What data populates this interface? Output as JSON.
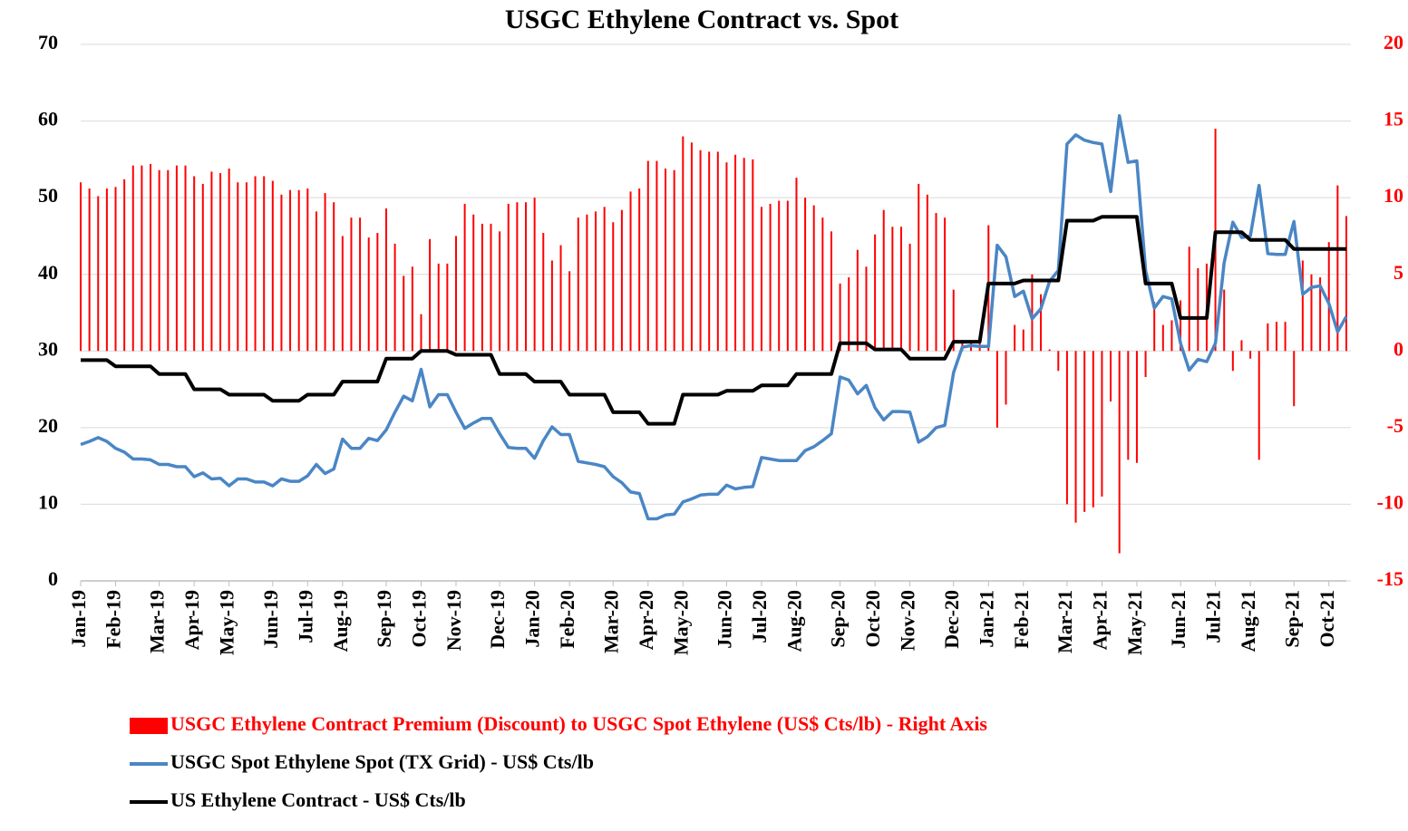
{
  "chart_data": {
    "type": "bar-line",
    "title": "USGC Ethylene Contract vs. Spot",
    "categories": [
      "Jan-19",
      null,
      null,
      null,
      "Feb-19",
      null,
      null,
      null,
      null,
      "Mar-19",
      null,
      null,
      null,
      "Apr-19",
      null,
      null,
      null,
      "May-19",
      null,
      null,
      null,
      null,
      "Jun-19",
      null,
      null,
      null,
      "Jul-19",
      null,
      null,
      null,
      "Aug-19",
      null,
      null,
      null,
      null,
      "Sep-19",
      null,
      null,
      null,
      "Oct-19",
      null,
      null,
      null,
      "Nov-19",
      null,
      null,
      null,
      null,
      "Dec-19",
      null,
      null,
      null,
      "Jan-20",
      null,
      null,
      null,
      "Feb-20",
      null,
      null,
      null,
      null,
      "Mar-20",
      null,
      null,
      null,
      "Apr-20",
      null,
      null,
      null,
      "May-20",
      null,
      null,
      null,
      null,
      "Jun-20",
      null,
      null,
      null,
      "Jul-20",
      null,
      null,
      null,
      "Aug-20",
      null,
      null,
      null,
      null,
      "Sep-20",
      null,
      null,
      null,
      "Oct-20",
      null,
      null,
      null,
      "Nov-20",
      null,
      null,
      null,
      null,
      "Dec-20",
      null,
      null,
      null,
      "Jan-21",
      null,
      null,
      null,
      "Feb-21",
      null,
      null,
      null,
      null,
      "Mar-21",
      null,
      null,
      null,
      "Apr-21",
      null,
      null,
      null,
      "May-21",
      null,
      null,
      null,
      null,
      "Jun-21",
      null,
      null,
      null,
      "Jul-21",
      null,
      null,
      null,
      "Aug-21",
      null,
      null,
      null,
      null,
      "Sep-21",
      null,
      null,
      null,
      "Oct-21",
      null,
      null
    ],
    "series": [
      {
        "name": "USGC Ethylene Contract Premium (Discount) to USGC Spot Ethylene (US$ Cts/lb) - Right Axis",
        "kind": "bar",
        "axis": "y2",
        "color": "#ff0000",
        "values": [
          11.0,
          10.6,
          10.1,
          10.6,
          10.7,
          11.2,
          12.1,
          12.1,
          12.2,
          11.8,
          11.8,
          12.1,
          12.1,
          11.4,
          10.9,
          11.7,
          11.6,
          11.9,
          11.0,
          11.0,
          11.4,
          11.4,
          11.1,
          10.2,
          10.5,
          10.5,
          10.6,
          9.1,
          10.3,
          9.7,
          7.5,
          8.7,
          8.7,
          7.4,
          7.7,
          9.3,
          7.0,
          4.9,
          5.5,
          2.4,
          7.3,
          5.7,
          5.7,
          7.5,
          9.6,
          8.9,
          8.3,
          8.3,
          7.8,
          9.6,
          9.7,
          9.7,
          10.0,
          7.7,
          5.9,
          6.9,
          5.2,
          8.7,
          8.9,
          9.1,
          9.4,
          8.4,
          9.2,
          10.4,
          10.6,
          12.4,
          12.4,
          11.9,
          11.8,
          14.0,
          13.6,
          13.1,
          13.0,
          13.0,
          12.3,
          12.8,
          12.6,
          12.5,
          9.4,
          9.6,
          9.8,
          9.8,
          11.3,
          10.0,
          9.5,
          8.7,
          7.8,
          4.4,
          4.8,
          6.6,
          5.5,
          7.6,
          9.2,
          8.1,
          8.1,
          7.0,
          10.9,
          10.2,
          9.0,
          8.7,
          4.0,
          0.7,
          0.5,
          0.6,
          8.2,
          -5.0,
          -3.5,
          1.7,
          1.4,
          5.0,
          3.7,
          0.1,
          -1.3,
          -10.0,
          -11.2,
          -10.5,
          -10.2,
          -9.5,
          -3.3,
          -13.2,
          -7.1,
          -7.3,
          -1.7,
          3.2,
          1.7,
          2.0,
          3.3,
          6.8,
          5.4,
          5.7,
          14.5,
          4.0,
          -1.3,
          0.7,
          -0.5,
          -7.1,
          1.8,
          1.9,
          1.9,
          -3.6,
          5.9,
          5.0,
          4.8,
          7.1,
          10.8,
          8.8
        ]
      },
      {
        "name": "USGC Spot Ethylene Spot (TX Grid) - US$ Cts/lb",
        "kind": "line",
        "color": "#4a86c5",
        "values": [
          17.8,
          18.2,
          18.7,
          18.2,
          17.3,
          16.8,
          15.9,
          15.9,
          15.8,
          15.2,
          15.2,
          14.9,
          14.9,
          13.6,
          14.1,
          13.3,
          13.4,
          12.4,
          13.3,
          13.3,
          12.9,
          12.9,
          12.4,
          13.3,
          13.0,
          13.0,
          13.7,
          15.2,
          14.0,
          14.6,
          18.5,
          17.3,
          17.3,
          18.6,
          18.3,
          19.7,
          22.0,
          24.1,
          23.5,
          27.6,
          22.7,
          24.3,
          24.3,
          22.0,
          19.9,
          20.6,
          21.2,
          21.2,
          19.2,
          17.4,
          17.3,
          17.3,
          16.0,
          18.3,
          20.1,
          19.1,
          19.1,
          15.6,
          15.4,
          15.2,
          14.9,
          13.6,
          12.8,
          11.6,
          11.4,
          8.1,
          8.1,
          8.6,
          8.7,
          10.3,
          10.7,
          11.2,
          11.3,
          11.3,
          12.5,
          12.0,
          12.2,
          12.3,
          16.1,
          15.9,
          15.7,
          15.7,
          15.7,
          17.0,
          17.5,
          18.3,
          19.2,
          26.6,
          26.2,
          24.4,
          25.5,
          22.6,
          21.0,
          22.1,
          22.1,
          22.0,
          18.1,
          18.8,
          20.0,
          20.3,
          27.2,
          30.5,
          30.7,
          30.6,
          30.6,
          43.8,
          42.3,
          37.1,
          37.8,
          34.2,
          35.5,
          39.1,
          40.5,
          57.0,
          58.2,
          57.5,
          57.2,
          57.0,
          50.8,
          60.7,
          54.6,
          54.8,
          40.5,
          35.6,
          37.1,
          36.8,
          31.0,
          27.5,
          28.9,
          28.6,
          31.0,
          41.5,
          46.8,
          44.8,
          45.0,
          51.6,
          42.7,
          42.6,
          42.6,
          46.9,
          37.4,
          38.3,
          38.5,
          36.2,
          32.5,
          34.5
        ]
      },
      {
        "name": "US Ethylene Contract - US$ Cts/lb",
        "kind": "line",
        "color": "#000000",
        "values": [
          28.8,
          28.8,
          28.8,
          28.8,
          28,
          28,
          28,
          28,
          28,
          27,
          27,
          27,
          27,
          25,
          25,
          25,
          25,
          24.3,
          24.3,
          24.3,
          24.3,
          24.3,
          23.5,
          23.5,
          23.5,
          23.5,
          24.3,
          24.3,
          24.3,
          24.3,
          26,
          26,
          26,
          26,
          26,
          29,
          29,
          29,
          29,
          30,
          30,
          30,
          30,
          29.5,
          29.5,
          29.5,
          29.5,
          29.5,
          27,
          27,
          27,
          27,
          26,
          26,
          26,
          26,
          24.3,
          24.3,
          24.3,
          24.3,
          24.3,
          22,
          22,
          22,
          22,
          20.5,
          20.5,
          20.5,
          20.5,
          24.3,
          24.3,
          24.3,
          24.3,
          24.3,
          24.8,
          24.8,
          24.8,
          24.8,
          25.5,
          25.5,
          25.5,
          25.5,
          27,
          27,
          27,
          27,
          27,
          31,
          31,
          31,
          31,
          30.2,
          30.2,
          30.2,
          30.2,
          29,
          29,
          29,
          29,
          29,
          31.2,
          31.2,
          31.2,
          31.2,
          38.8,
          38.8,
          38.8,
          38.8,
          39.2,
          39.2,
          39.2,
          39.2,
          39.2,
          47,
          47,
          47,
          47,
          47.5,
          47.5,
          47.5,
          47.5,
          47.5,
          38.8,
          38.8,
          38.8,
          38.8,
          34.3,
          34.3,
          34.3,
          34.3,
          45.5,
          45.5,
          45.5,
          45.5,
          44.5,
          44.5,
          44.5,
          44.5,
          44.5,
          43.3,
          43.3,
          43.3,
          43.3,
          43.3,
          43.3,
          43.3
        ]
      }
    ],
    "ylim": [
      0,
      70
    ],
    "yticks": [
      0,
      10,
      20,
      30,
      40,
      50,
      60,
      70
    ],
    "y2lim": [
      -15,
      20
    ],
    "y2ticks": [
      -15,
      -10,
      -5,
      0,
      5,
      10,
      15,
      20
    ],
    "y2color": "#ff0000"
  }
}
